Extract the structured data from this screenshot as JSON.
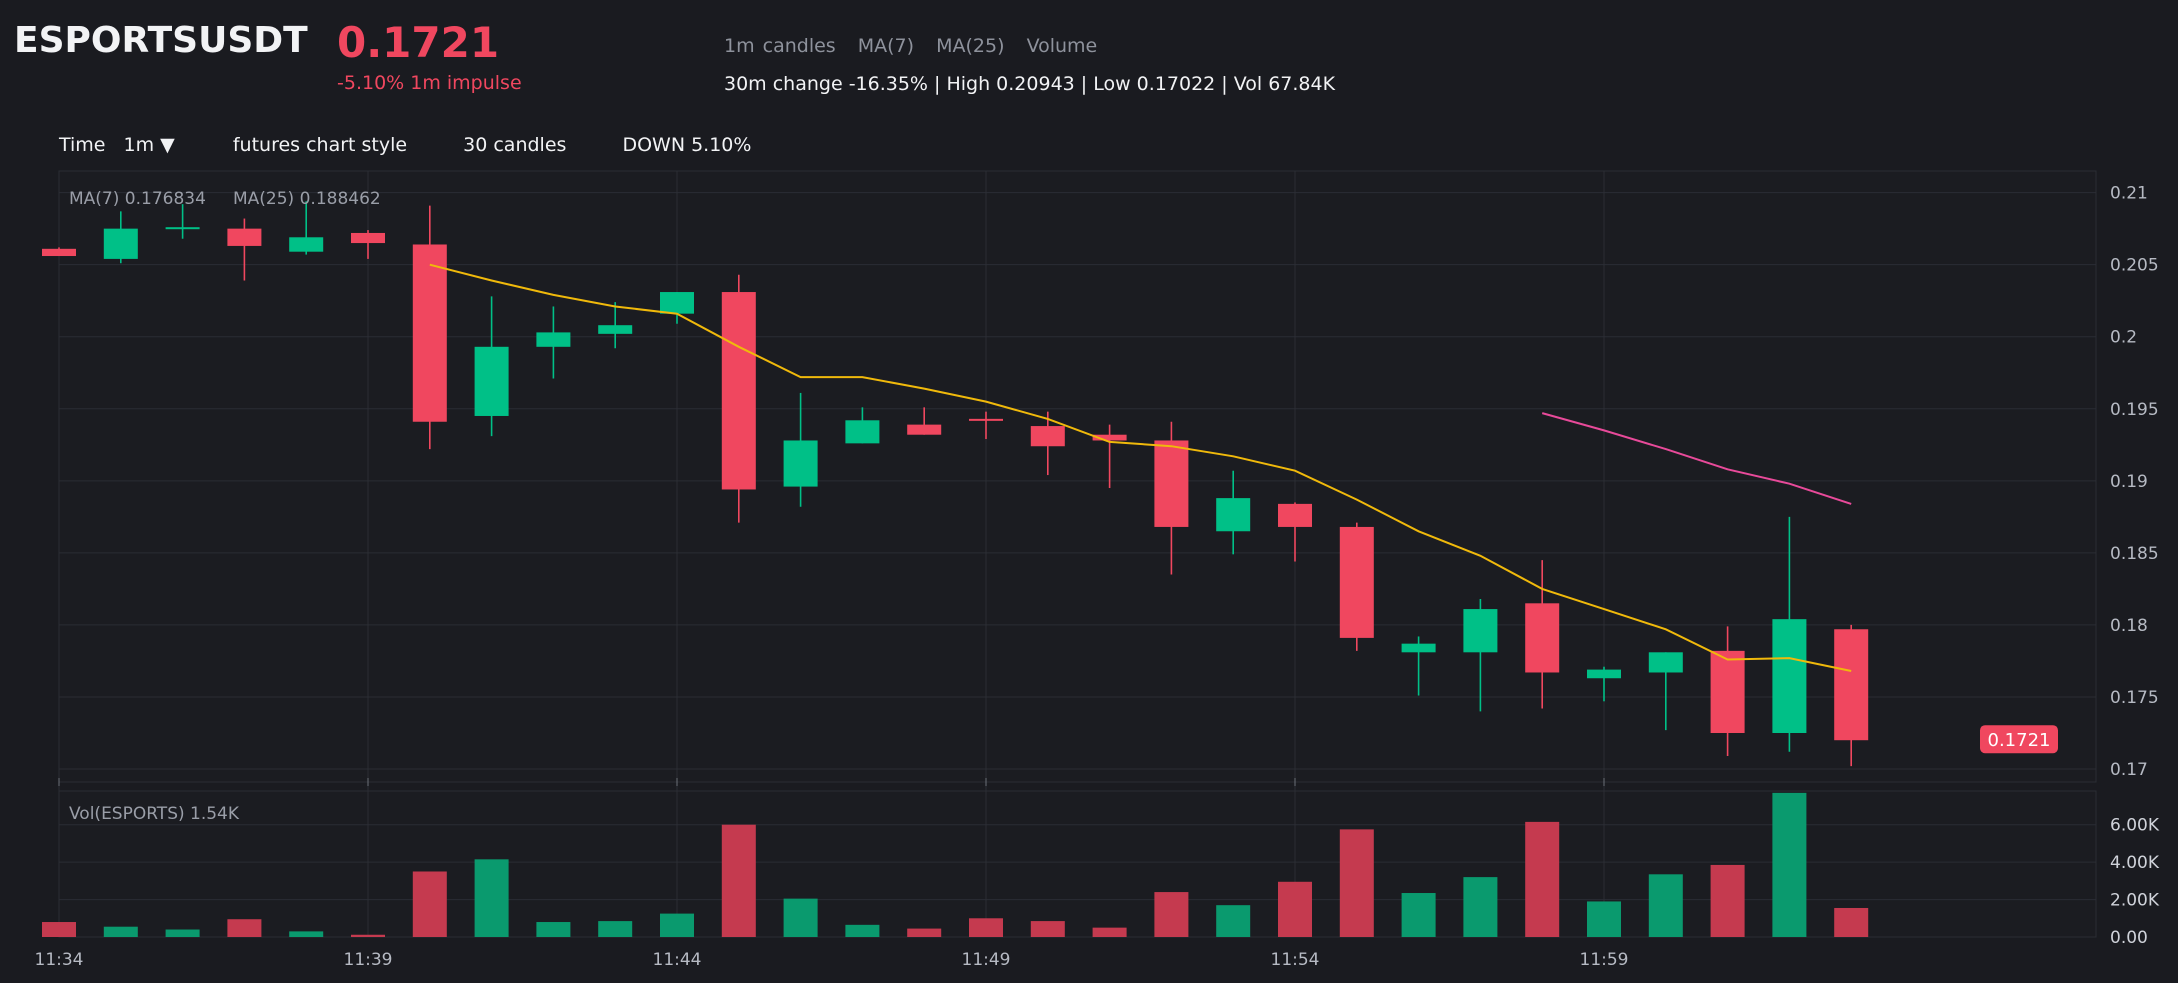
{
  "header": {
    "symbol": "ESPORTSUSDT",
    "last_price": "0.1721",
    "impulse": "-5.10% 1m impulse",
    "legend": [
      "1m candles",
      "MA(7)",
      "MA(25)",
      "Volume"
    ],
    "stats": "30m change -16.35% | High 0.20943 | Low 0.17022 | Vol 67.84K"
  },
  "toolbar": {
    "time_label": "Time",
    "interval": "1m ▼",
    "style": "futures chart style",
    "candles": "30 candles",
    "direction": "DOWN 5.10%"
  },
  "colors": {
    "up": "#00c087",
    "down": "#f0475f",
    "ma7": "#f0b90b",
    "ma25": "#e84a9a",
    "background": "#1a1b20",
    "grid": "#2b2d34"
  },
  "chart_data": {
    "type": "candlestick",
    "interval": "1m",
    "ma7_label": "MA(7) 0.176834",
    "ma25_label": "MA(25) 0.188462",
    "volume_label": "Vol(ESPORTS) 1.54K",
    "price_tag": "0.1721",
    "price_ticks": [
      "0.17",
      "0.175",
      "0.18",
      "0.185",
      "0.19",
      "0.195",
      "0.2",
      "0.205",
      "0.21"
    ],
    "price_tick_values": [
      0.17,
      0.175,
      0.18,
      0.185,
      0.19,
      0.195,
      0.2,
      0.205,
      0.21
    ],
    "price_ylim": [
      0.1691,
      0.2115
    ],
    "volume_ticks": [
      "0.00",
      "2.00K",
      "4.00K",
      "6.00K"
    ],
    "volume_tick_values": [
      0,
      2000,
      4000,
      6000
    ],
    "volume_ylim": [
      0,
      7800
    ],
    "x_ticks": [
      "11:34",
      "11:39",
      "11:44",
      "11:49",
      "11:54",
      "11:59"
    ],
    "x_tick_index": [
      0,
      5,
      10,
      15,
      20,
      25
    ],
    "x_count": 33,
    "candles": [
      {
        "o": 0.2061,
        "h": 0.2062,
        "l": 0.2056,
        "c": 0.2056,
        "v": 800
      },
      {
        "o": 0.2054,
        "h": 0.2087,
        "l": 0.2051,
        "c": 0.2075,
        "v": 550
      },
      {
        "o": 0.2075,
        "h": 0.2092,
        "l": 0.2068,
        "c": 0.2076,
        "v": 400
      },
      {
        "o": 0.2075,
        "h": 0.2082,
        "l": 0.2039,
        "c": 0.2063,
        "v": 950
      },
      {
        "o": 0.2059,
        "h": 0.2094,
        "l": 0.2057,
        "c": 0.2069,
        "v": 300
      },
      {
        "o": 0.2072,
        "h": 0.2074,
        "l": 0.2054,
        "c": 0.2065,
        "v": 120
      },
      {
        "o": 0.2064,
        "h": 0.2091,
        "l": 0.1922,
        "c": 0.1941,
        "v": 3500
      },
      {
        "o": 0.1945,
        "h": 0.2028,
        "l": 0.1931,
        "c": 0.1993,
        "v": 4150
      },
      {
        "o": 0.1993,
        "h": 0.2021,
        "l": 0.1971,
        "c": 0.2003,
        "v": 800
      },
      {
        "o": 0.2002,
        "h": 0.2024,
        "l": 0.1992,
        "c": 0.2008,
        "v": 850
      },
      {
        "o": 0.2016,
        "h": 0.2031,
        "l": 0.2009,
        "c": 0.2031,
        "v": 1250
      },
      {
        "o": 0.2031,
        "h": 0.2043,
        "l": 0.1871,
        "c": 0.1894,
        "v": 6000
      },
      {
        "o": 0.1896,
        "h": 0.1961,
        "l": 0.1882,
        "c": 0.1928,
        "v": 2050
      },
      {
        "o": 0.1926,
        "h": 0.1951,
        "l": 0.1926,
        "c": 0.1942,
        "v": 650
      },
      {
        "o": 0.1939,
        "h": 0.1951,
        "l": 0.1932,
        "c": 0.1932,
        "v": 450
      },
      {
        "o": 0.1943,
        "h": 0.1948,
        "l": 0.1929,
        "c": 0.1942,
        "v": 1000
      },
      {
        "o": 0.1938,
        "h": 0.1948,
        "l": 0.1904,
        "c": 0.1924,
        "v": 850
      },
      {
        "o": 0.1932,
        "h": 0.1939,
        "l": 0.1895,
        "c": 0.1928,
        "v": 500
      },
      {
        "o": 0.1928,
        "h": 0.1941,
        "l": 0.1835,
        "c": 0.1868,
        "v": 2400
      },
      {
        "o": 0.1865,
        "h": 0.1907,
        "l": 0.1849,
        "c": 0.1888,
        "v": 1700
      },
      {
        "o": 0.1884,
        "h": 0.1885,
        "l": 0.1844,
        "c": 0.1868,
        "v": 2950
      },
      {
        "o": 0.1868,
        "h": 0.1871,
        "l": 0.1782,
        "c": 0.1791,
        "v": 5750
      },
      {
        "o": 0.1781,
        "h": 0.1792,
        "l": 0.1751,
        "c": 0.1787,
        "v": 2350
      },
      {
        "o": 0.1781,
        "h": 0.1818,
        "l": 0.174,
        "c": 0.1811,
        "v": 3200
      },
      {
        "o": 0.1815,
        "h": 0.1845,
        "l": 0.1742,
        "c": 0.1767,
        "v": 6150
      },
      {
        "o": 0.1763,
        "h": 0.1771,
        "l": 0.1747,
        "c": 0.1769,
        "v": 1900
      },
      {
        "o": 0.1767,
        "h": 0.1781,
        "l": 0.1727,
        "c": 0.1781,
        "v": 3350
      },
      {
        "o": 0.1782,
        "h": 0.1799,
        "l": 0.1709,
        "c": 0.1725,
        "v": 3850
      },
      {
        "o": 0.1725,
        "h": 0.1875,
        "l": 0.1712,
        "c": 0.1804,
        "v": 7700
      },
      {
        "o": 0.1797,
        "h": 0.18,
        "l": 0.1702,
        "c": 0.172,
        "v": 1550
      }
    ],
    "ma7": [
      null,
      null,
      null,
      null,
      null,
      null,
      0.205,
      0.2039,
      0.2029,
      0.2021,
      0.2016,
      0.1993,
      0.1972,
      0.1972,
      0.1964,
      0.1955,
      0.1943,
      0.1927,
      0.1924,
      0.1917,
      0.1907,
      0.1887,
      0.1865,
      0.1848,
      0.1825,
      0.1811,
      0.1797,
      0.1776,
      0.1777,
      0.1768
    ],
    "ma25": [
      null,
      null,
      null,
      null,
      null,
      null,
      null,
      null,
      null,
      null,
      null,
      null,
      null,
      null,
      null,
      null,
      null,
      null,
      null,
      null,
      null,
      null,
      null,
      null,
      0.1947,
      0.1935,
      0.1922,
      0.1908,
      0.1898,
      0.1884
    ]
  }
}
